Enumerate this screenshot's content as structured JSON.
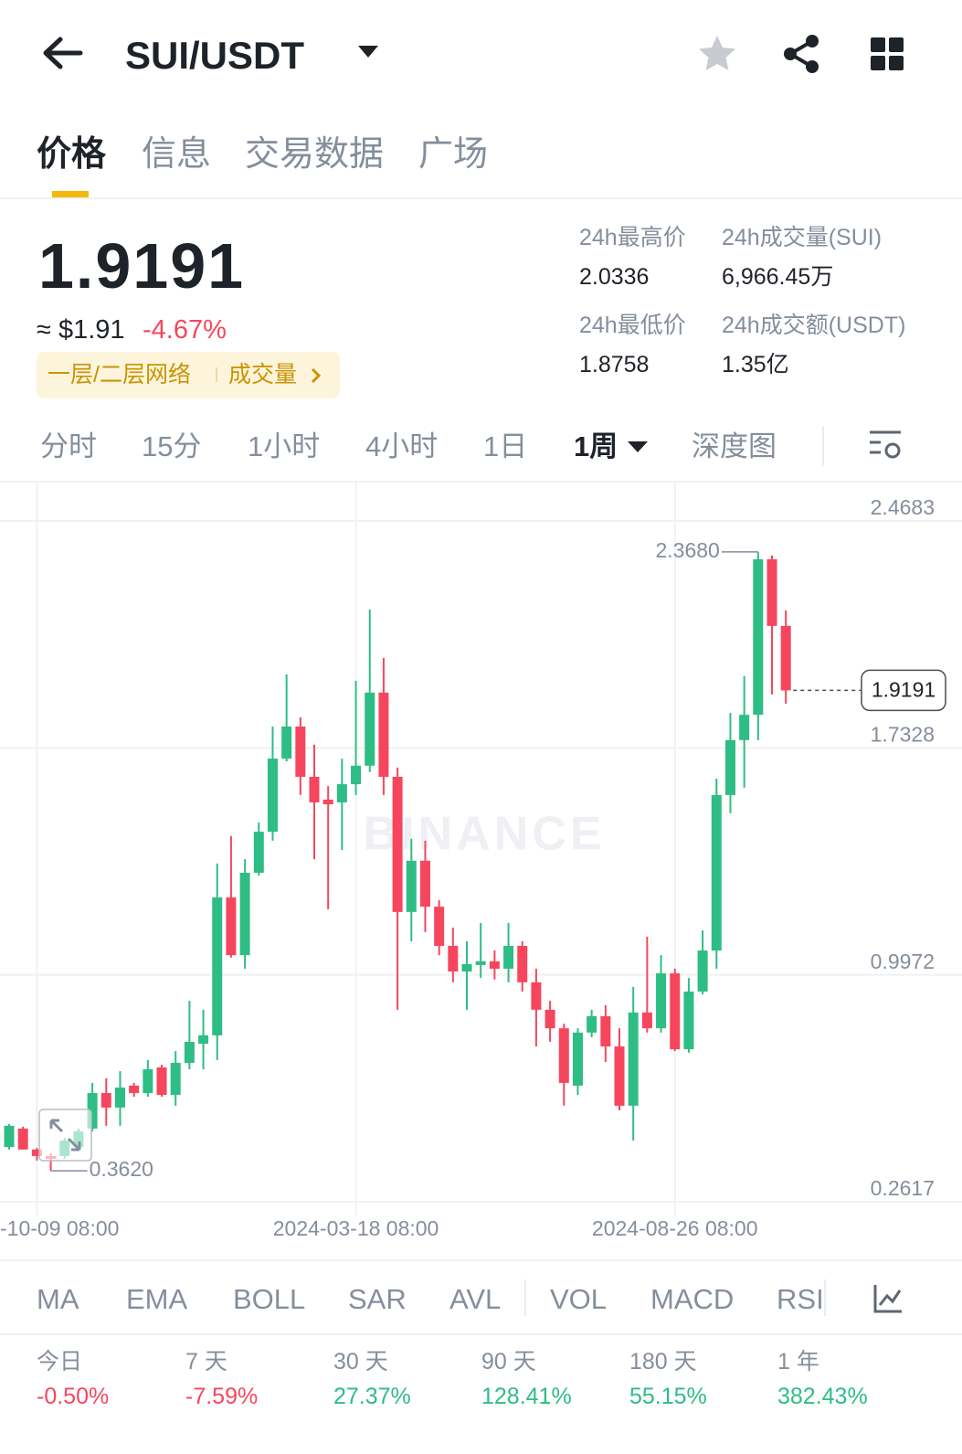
{
  "header": {
    "pair": "SUI/USDT"
  },
  "tabs": [
    "价格",
    "信息",
    "交易数据",
    "广场"
  ],
  "price": {
    "last": "1.9191",
    "usd": "≈ $1.91",
    "change": "-4.67%",
    "tags": [
      "一层/二层网络",
      "成交量"
    ]
  },
  "stats": [
    {
      "label": "24h最高价",
      "value": "2.0336"
    },
    {
      "label": "24h成交量(SUI)",
      "value": "6,966.45万"
    },
    {
      "label": "24h最低价",
      "value": "1.8758"
    },
    {
      "label": "24h成交额(USDT)",
      "value": "1.35亿"
    }
  ],
  "intervals": [
    "分时",
    "15分",
    "1小时",
    "4小时",
    "1日",
    "1周",
    "深度图"
  ],
  "chart_data": {
    "type": "candlestick",
    "watermark": "BINANCE",
    "up_color": "#2ebd85",
    "down_color": "#f6465d",
    "open": [
      0.439,
      0.499,
      0.431,
      0.41,
      0.41,
      0.439,
      0.499,
      0.614,
      0.567,
      0.638,
      0.614,
      0.697,
      0.608,
      0.712,
      0.774,
      0.801,
      1.248,
      1.061,
      1.328,
      1.461,
      1.698,
      1.802,
      1.639,
      1.565,
      1.556,
      1.615,
      1.675,
      1.912,
      1.639,
      1.201,
      1.367,
      1.218,
      1.091,
      1.008,
      1.029,
      1.041,
      1.017,
      1.091,
      0.973,
      0.884,
      0.824,
      0.638,
      0.81,
      0.863,
      0.765,
      0.573,
      0.875,
      0.824,
      1.002,
      0.756,
      0.943,
      1.076,
      1.58,
      1.758,
      1.84,
      2.344,
      2.128
    ],
    "high": [
      0.514,
      0.505,
      0.436,
      0.419,
      0.469,
      0.499,
      0.647,
      0.662,
      0.685,
      0.647,
      0.721,
      0.706,
      0.75,
      0.913,
      0.884,
      1.358,
      1.447,
      1.372,
      1.491,
      1.802,
      1.971,
      1.832,
      1.743,
      1.609,
      1.698,
      1.95,
      2.181,
      2.024,
      1.669,
      1.438,
      1.432,
      1.239,
      1.15,
      1.106,
      1.165,
      1.076,
      1.165,
      1.106,
      1.017,
      0.913,
      0.839,
      0.824,
      0.884,
      0.899,
      0.824,
      0.958,
      1.121,
      1.061,
      1.017,
      0.987,
      1.141,
      1.633,
      1.846,
      1.965,
      2.368,
      2.356,
      2.178
    ],
    "low": [
      0.431,
      0.431,
      0.395,
      0.362,
      0.401,
      0.431,
      0.49,
      0.508,
      0.508,
      0.602,
      0.602,
      0.602,
      0.573,
      0.691,
      0.691,
      0.721,
      1.053,
      1.017,
      1.319,
      1.432,
      1.689,
      1.58,
      1.372,
      1.21,
      1.402,
      1.58,
      1.654,
      1.58,
      0.884,
      1.106,
      1.136,
      1.061,
      0.973,
      0.884,
      0.987,
      0.982,
      0.973,
      0.943,
      0.765,
      0.78,
      0.573,
      0.608,
      0.795,
      0.715,
      0.558,
      0.46,
      0.81,
      0.81,
      0.75,
      0.745,
      0.934,
      1.017,
      1.521,
      1.604,
      1.758,
      1.906,
      1.876
    ],
    "close": [
      0.508,
      0.431,
      0.41,
      0.401,
      0.46,
      0.49,
      0.614,
      0.567,
      0.632,
      0.614,
      0.691,
      0.608,
      0.712,
      0.78,
      0.801,
      1.248,
      1.061,
      1.328,
      1.461,
      1.698,
      1.802,
      1.639,
      1.556,
      1.55,
      1.615,
      1.675,
      1.912,
      1.639,
      1.201,
      1.367,
      1.218,
      1.091,
      1.008,
      1.032,
      1.041,
      1.017,
      1.091,
      0.973,
      0.884,
      0.824,
      0.647,
      0.81,
      0.863,
      0.765,
      0.573,
      0.875,
      0.824,
      1.002,
      0.756,
      0.943,
      1.076,
      1.58,
      1.758,
      1.84,
      2.344,
      2.128,
      1.9191
    ],
    "xlim": [
      -0.66,
      68.7
    ],
    "xticks": [
      {
        "value": 2,
        "label": "-10-09 08:00"
      },
      {
        "value": 25,
        "label": "2024-03-18 08:00"
      },
      {
        "value": 48,
        "label": "2024-08-26 08:00"
      }
    ],
    "ylim": [
      0.1284,
      2.5957
    ],
    "yticks": [
      2.4683,
      1.7328,
      0.9972,
      0.2617
    ],
    "grid": true,
    "high_label": {
      "value": 2.368,
      "label": "2.3680"
    },
    "low_label": {
      "value": 0.362,
      "label": "0.3620"
    },
    "last_price": 1.9191
  },
  "indicators": [
    "MA",
    "EMA",
    "BOLL",
    "SAR",
    "AVL",
    "VOL",
    "MACD",
    "RSI"
  ],
  "performance": [
    {
      "label": "今日",
      "value": "-0.50%"
    },
    {
      "label": "7 天",
      "value": "-7.59%"
    },
    {
      "label": "30 天",
      "value": "27.37%"
    },
    {
      "label": "90 天",
      "value": "128.41%"
    },
    {
      "label": "180 天",
      "value": "55.15%"
    },
    {
      "label": "1 年",
      "value": "382.43%"
    }
  ]
}
